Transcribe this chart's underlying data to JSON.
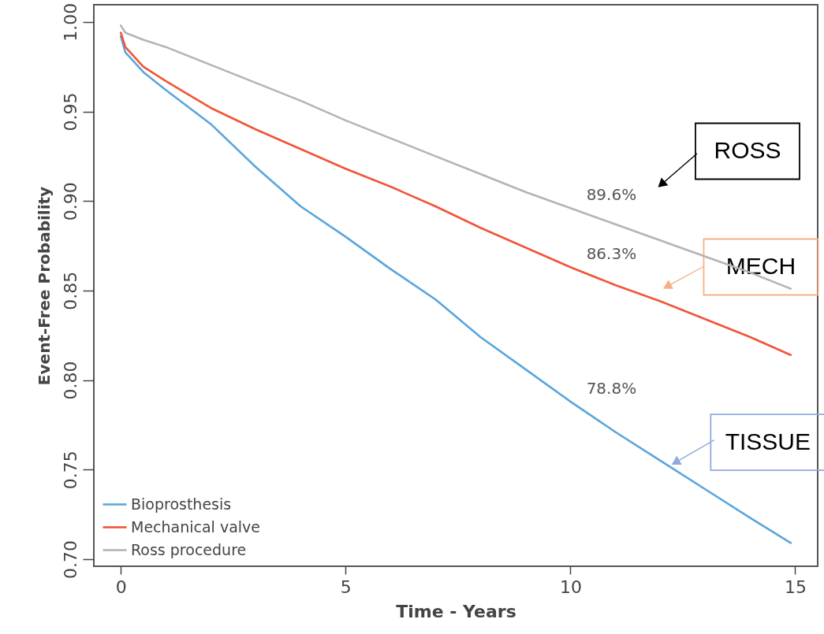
{
  "chart_data": {
    "type": "line",
    "xlabel": "Time - Years",
    "ylabel": "Event-Free Probability",
    "x": [
      0,
      0.1,
      0.5,
      1,
      2,
      3,
      4,
      5,
      6,
      7,
      8,
      9,
      10,
      11,
      12,
      13,
      14,
      14.9
    ],
    "series": [
      {
        "name": "Bioprosthesis",
        "color": "#5aa5dc",
        "values": [
          0.992,
          0.983,
          0.972,
          0.962,
          0.943,
          0.919,
          0.897,
          0.88,
          0.862,
          0.845,
          0.824,
          0.806,
          0.788,
          0.771,
          0.755,
          0.739,
          0.723,
          0.709
        ],
        "value_labels": [
          null,
          null,
          null,
          null,
          null,
          null,
          null,
          null,
          null,
          null,
          null,
          null,
          "78.8%",
          null,
          null,
          null,
          null,
          null
        ]
      },
      {
        "name": "Mechanical valve",
        "color": "#f05537",
        "values": [
          0.994,
          0.986,
          0.975,
          0.967,
          0.952,
          0.94,
          0.929,
          0.918,
          0.908,
          0.897,
          0.885,
          0.874,
          0.863,
          0.853,
          0.844,
          0.834,
          0.824,
          0.814
        ],
        "value_labels": [
          null,
          null,
          null,
          null,
          null,
          null,
          null,
          null,
          null,
          null,
          null,
          null,
          "86.3%",
          null,
          null,
          null,
          null,
          null
        ]
      },
      {
        "name": "Ross procedure",
        "color": "#b4b4b4",
        "values": [
          0.998,
          0.994,
          0.99,
          0.986,
          0.976,
          0.966,
          0.956,
          0.945,
          0.935,
          0.925,
          0.915,
          0.905,
          0.896,
          0.887,
          0.878,
          0.869,
          0.86,
          0.851
        ],
        "value_labels": [
          null,
          null,
          null,
          null,
          null,
          null,
          null,
          null,
          null,
          null,
          null,
          null,
          "89.6%",
          null,
          null,
          null,
          null,
          null
        ]
      }
    ],
    "xlim": [
      -0.6,
      15.5
    ],
    "xticks": [
      0,
      5,
      10,
      15
    ],
    "ylim": [
      0.696,
      1.0096
    ],
    "yticks": [
      {
        "value": 0.7,
        "label": "0.70"
      },
      0.75,
      {
        "value": 0.8,
        "label": "0.80"
      },
      0.85,
      {
        "value": 0.9,
        "label": "0.90"
      },
      0.95,
      {
        "value": 1.0,
        "label": "1.00"
      }
    ],
    "grid": false,
    "legend": "bottom left",
    "marker": "none",
    "line_style": "solid",
    "annotations": [
      "ROSS",
      "MECH",
      {
        "text": "TISSUE",
        "x": 12.2,
        "y": 0.752
      }
    ]
  }
}
